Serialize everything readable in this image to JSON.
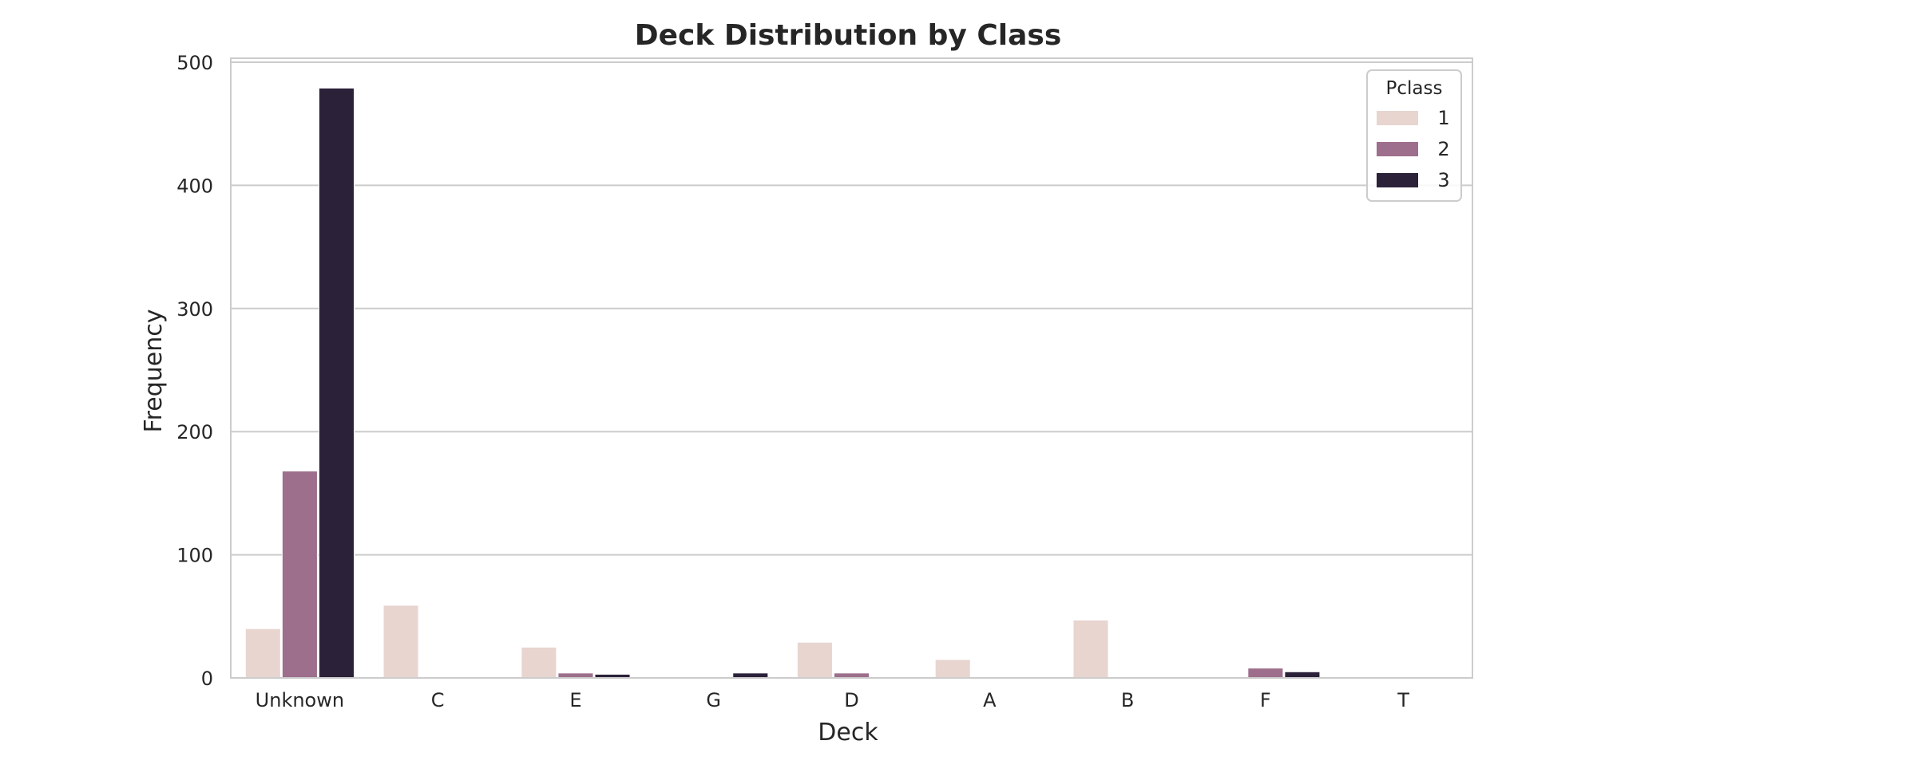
{
  "chart_data": {
    "type": "bar",
    "title": "Deck Distribution by Class",
    "xlabel": "Deck",
    "ylabel": "Frequency",
    "ylim": [
      0,
      500
    ],
    "yticks": [
      0,
      100,
      200,
      300,
      400,
      500
    ],
    "categories": [
      "Unknown",
      "C",
      "E",
      "G",
      "D",
      "A",
      "B",
      "F",
      "T"
    ],
    "grid": "horizontal",
    "legend_title": "Pclass",
    "legend_position": "top-right",
    "series": [
      {
        "name": "1",
        "color": "#e8d5d0",
        "values": [
          40,
          59,
          25,
          0,
          29,
          15,
          47,
          0,
          1
        ]
      },
      {
        "name": "2",
        "color": "#9d6f8c",
        "values": [
          168,
          0,
          4,
          0,
          4,
          0,
          0,
          8,
          0
        ]
      },
      {
        "name": "3",
        "color": "#2b2139",
        "values": [
          479,
          0,
          3,
          4,
          0,
          0,
          0,
          5,
          0
        ]
      }
    ]
  }
}
